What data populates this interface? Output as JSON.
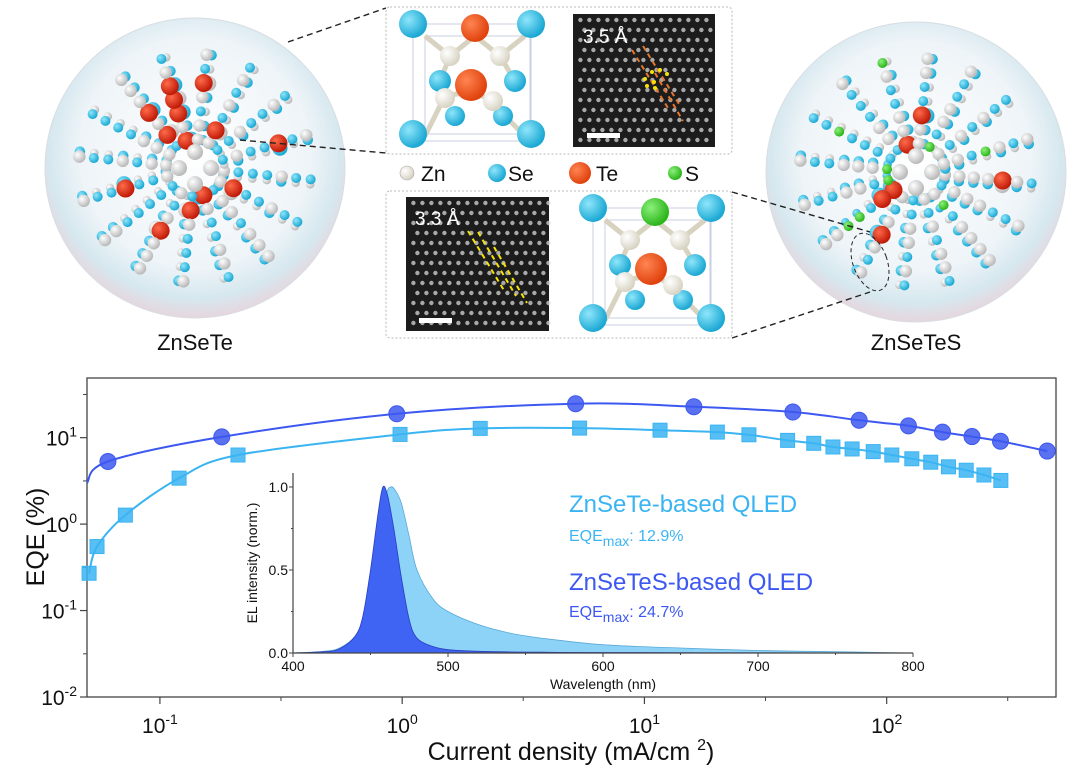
{
  "illustration": {
    "left_particle_label": "ZnSeTe",
    "right_particle_label": "ZnSeTeS",
    "legend": [
      {
        "element": "Zn",
        "color": "#efece2"
      },
      {
        "element": "Se",
        "color": "#2ec3e6"
      },
      {
        "element": "Te",
        "color": "#f0501a"
      },
      {
        "element": "S",
        "color": "#3fd12a"
      }
    ],
    "top_tem_label": "3.5 Å",
    "bottom_tem_label": "3.3 Å"
  },
  "colors": {
    "znsete": "#3bb4f2",
    "znsetes": "#3d58f0",
    "znsete_fill": "#8dd3f7",
    "znsetes_fill": "#3f63f2"
  },
  "chart_data": [
    {
      "type": "scatter",
      "title": "",
      "xlabel": "Current density (mA/cm²)",
      "ylabel": "EQE (%)",
      "xscale": "log",
      "yscale": "log",
      "xlim": [
        0.05,
        500
      ],
      "ylim": [
        0.01,
        49
      ],
      "xticks": [
        {
          "value": 0.1,
          "base": "10",
          "exp": "-1"
        },
        {
          "value": 1,
          "base": "10",
          "exp": "0"
        },
        {
          "value": 10,
          "base": "10",
          "exp": "1"
        },
        {
          "value": 100,
          "base": "10",
          "exp": "2"
        }
      ],
      "yticks": [
        {
          "value": 0.01,
          "base": "10",
          "exp": "-2"
        },
        {
          "value": 0.1,
          "base": "10",
          "exp": "-1"
        },
        {
          "value": 1,
          "base": "10",
          "exp": "0"
        },
        {
          "value": 10,
          "base": "10",
          "exp": "1"
        }
      ],
      "grid": false,
      "series": [
        {
          "name": "ZnSeTeS-based QLED",
          "marker": "circle",
          "eqe_max_label": "EQE",
          "eqe_max_sub": "max",
          "eqe_max_value": ": 24.7%",
          "x": [
            0.061,
            0.18,
            0.95,
            5.2,
            16,
            41,
            77,
            123,
            170,
            225,
            295,
            460
          ],
          "y": [
            5.3,
            10.2,
            18.9,
            24.7,
            22.8,
            19.8,
            15.9,
            13.7,
            11.6,
            10.3,
            9.1,
            7.0
          ]
        },
        {
          "name": "ZnSeTe-based QLED",
          "marker": "square",
          "eqe_max_label": "EQE",
          "eqe_max_sub": "max",
          "eqe_max_value": ": 12.9%",
          "x": [
            0.051,
            0.055,
            0.072,
            0.12,
            0.21,
            0.98,
            2.1,
            5.4,
            11.6,
            20,
            27,
            39,
            50,
            60,
            72,
            88,
            105,
            127,
            152,
            180,
            213,
            252,
            296
          ],
          "y": [
            0.27,
            0.55,
            1.27,
            3.4,
            6.3,
            10.9,
            12.8,
            12.9,
            12.2,
            11.6,
            10.8,
            9.3,
            8.6,
            7.8,
            7.4,
            6.9,
            6.3,
            5.7,
            5.2,
            4.6,
            4.2,
            3.7,
            3.2
          ]
        }
      ]
    },
    {
      "type": "area",
      "title": "",
      "xlabel": "Wavelength (nm)",
      "ylabel": "EL intensity (norm.)",
      "xlim": [
        400,
        800
      ],
      "ylim": [
        0,
        1.05
      ],
      "xticks": [
        400,
        500,
        600,
        700,
        800
      ],
      "yticks": [
        "0.0",
        "0.5",
        "1.0"
      ],
      "legend_placement": "right",
      "series": [
        {
          "name": "ZnSeTe-based QLED",
          "peak_nm": 463,
          "x": [
            400,
            420,
            430,
            440,
            445,
            450,
            455,
            460,
            463,
            466,
            470,
            475,
            480,
            490,
            500,
            520,
            540,
            560,
            600,
            650,
            700,
            750,
            800
          ],
          "y": [
            0.0,
            0.01,
            0.03,
            0.1,
            0.2,
            0.4,
            0.7,
            0.95,
            1.0,
            0.98,
            0.9,
            0.7,
            0.5,
            0.33,
            0.25,
            0.17,
            0.12,
            0.09,
            0.05,
            0.03,
            0.015,
            0.008,
            0.0
          ]
        },
        {
          "name": "ZnSeTeS-based QLED",
          "peak_nm": 458,
          "x": [
            400,
            420,
            430,
            440,
            445,
            450,
            455,
            458,
            461,
            465,
            470,
            475,
            480,
            490,
            500,
            520,
            560,
            600,
            700,
            800
          ],
          "y": [
            0.0,
            0.008,
            0.025,
            0.1,
            0.22,
            0.5,
            0.85,
            1.0,
            0.95,
            0.75,
            0.45,
            0.2,
            0.09,
            0.04,
            0.02,
            0.01,
            0.005,
            0.003,
            0.001,
            0.0
          ]
        }
      ]
    }
  ]
}
